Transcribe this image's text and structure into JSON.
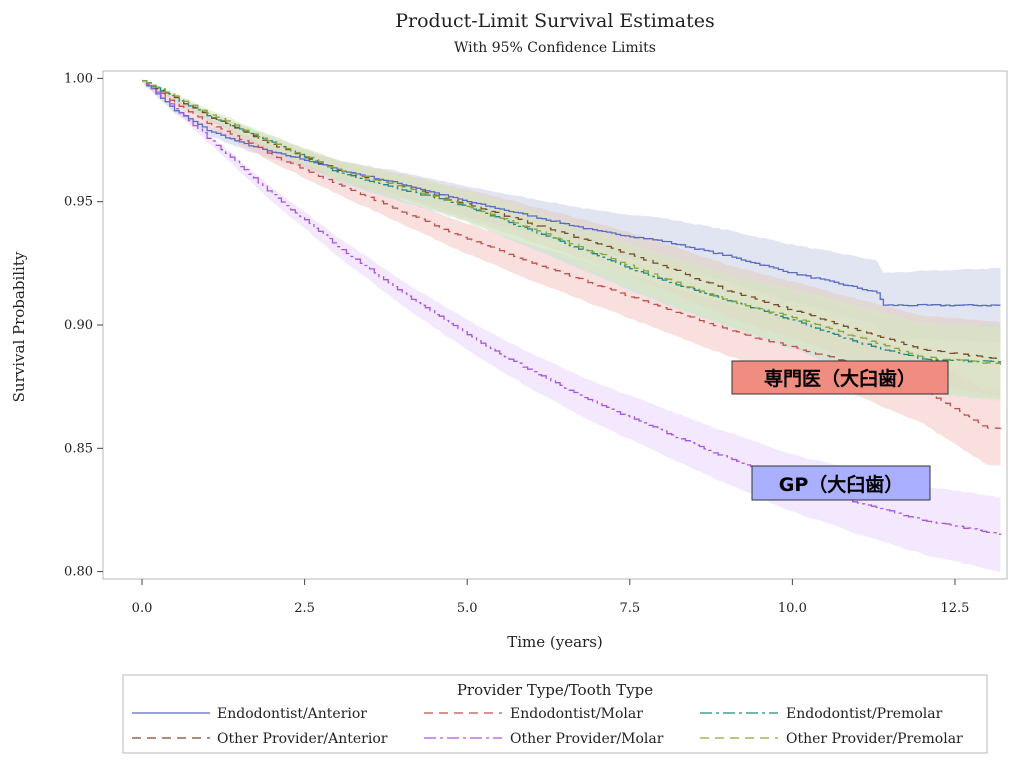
{
  "chart_data": {
    "type": "line",
    "title": "Product-Limit Survival Estimates",
    "subtitle": "With 95% Confidence Limits",
    "xlabel": "Time (years)",
    "ylabel": "Survival Probability",
    "xlim": [
      -0.6,
      13.3
    ],
    "ylim": [
      0.797,
      1.003
    ],
    "x_ticks": [
      "0.0",
      "2.5",
      "5.0",
      "7.5",
      "10.0",
      "12.5"
    ],
    "x_tick_values": [
      0,
      2.5,
      5,
      7.5,
      10,
      12.5
    ],
    "y_ticks": [
      "0.80",
      "0.85",
      "0.90",
      "0.95",
      "1.00"
    ],
    "y_tick_values": [
      0.8,
      0.85,
      0.9,
      0.95,
      1.0
    ],
    "legend_title": "Provider Type/Tooth Type",
    "series": [
      {
        "name": "Endodontist/Anterior",
        "color": "#5b6bc0",
        "dash": "",
        "ci_color": "#c9cfe8",
        "x": [
          0,
          0.5,
          1,
          1.5,
          2,
          2.5,
          3,
          4,
          5,
          6,
          7,
          8,
          9,
          10,
          10.5,
          11,
          11.3,
          11.4,
          12,
          13.2
        ],
        "y": [
          0.999,
          0.987,
          0.979,
          0.974,
          0.97,
          0.967,
          0.963,
          0.957,
          0.95,
          0.944,
          0.938,
          0.934,
          0.928,
          0.921,
          0.918,
          0.915,
          0.913,
          0.908,
          0.908,
          0.908
        ]
      },
      {
        "name": "Endodontist/Molar",
        "color": "#c0504d",
        "dash": "9,6",
        "ci_color": "#f4c7c3",
        "x": [
          0,
          0.5,
          1,
          2,
          3,
          4,
          5,
          6,
          7,
          8,
          9,
          10,
          11,
          12,
          12.5,
          13,
          13.2
        ],
        "y": [
          0.999,
          0.99,
          0.982,
          0.969,
          0.957,
          0.946,
          0.935,
          0.925,
          0.916,
          0.907,
          0.898,
          0.891,
          0.884,
          0.874,
          0.866,
          0.858,
          0.858
        ]
      },
      {
        "name": "Endodontist/Premolar",
        "color": "#1f8a85",
        "dash": "12,4,3,4",
        "ci_color": "#bde2df",
        "x": [
          0,
          0.5,
          1,
          2,
          3,
          4,
          5,
          6,
          7,
          8,
          9,
          10,
          11,
          12,
          13.2
        ],
        "y": [
          0.999,
          0.992,
          0.985,
          0.974,
          0.962,
          0.955,
          0.948,
          0.938,
          0.928,
          0.918,
          0.91,
          0.902,
          0.893,
          0.886,
          0.885
        ]
      },
      {
        "name": "Other Provider/Anterior",
        "color": "#7a4a2a",
        "dash": "9,6",
        "ci_color": "#e2cdbd",
        "x": [
          0,
          0.5,
          1,
          2,
          3,
          4,
          5,
          6,
          7,
          8,
          9,
          10,
          11,
          12,
          13.2
        ],
        "y": [
          0.999,
          0.992,
          0.985,
          0.973,
          0.963,
          0.956,
          0.949,
          0.941,
          0.933,
          0.924,
          0.914,
          0.906,
          0.898,
          0.89,
          0.886
        ]
      },
      {
        "name": "Other Provider/Molar",
        "color": "#a855e0",
        "dash": "12,4,3,4",
        "ci_color": "#ead5fb",
        "x": [
          0,
          0.5,
          1,
          2,
          3,
          4,
          5,
          6,
          7,
          8,
          9,
          10,
          11,
          12,
          13.2
        ],
        "y": [
          0.999,
          0.988,
          0.976,
          0.953,
          0.932,
          0.913,
          0.896,
          0.881,
          0.868,
          0.857,
          0.846,
          0.836,
          0.828,
          0.821,
          0.815
        ]
      },
      {
        "name": "Other Provider/Premolar",
        "color": "#8aa63a",
        "dash": "9,6",
        "ci_color": "#dbe8bf",
        "x": [
          0,
          0.5,
          1,
          2,
          3,
          4,
          5,
          6,
          7,
          8,
          9,
          10,
          11,
          12,
          13.2
        ],
        "y": [
          0.999,
          0.993,
          0.986,
          0.974,
          0.963,
          0.956,
          0.948,
          0.939,
          0.929,
          0.919,
          0.91,
          0.903,
          0.895,
          0.887,
          0.884
        ]
      }
    ],
    "annotations": [
      {
        "text": "専門医（大臼歯）",
        "bg": "#f08c80",
        "target": "Endodontist/Molar"
      },
      {
        "text": "GP（大臼歯）",
        "bg": "#aab0ff",
        "target": "Other Provider/Molar"
      }
    ]
  }
}
